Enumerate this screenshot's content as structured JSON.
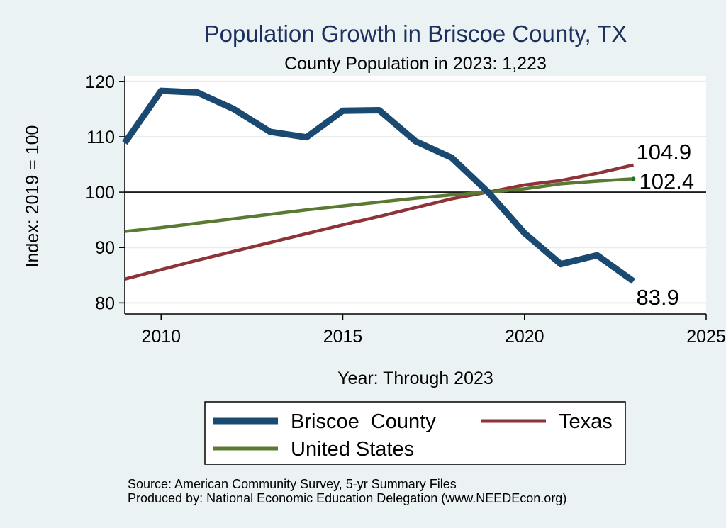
{
  "chart_data": {
    "type": "line",
    "title": "Population Growth in Briscoe County, TX",
    "subtitle": "County Population in 2023: 1,223",
    "xlabel": "Year: Through 2023",
    "ylabel": "Index: 2019 = 100",
    "xlim": [
      2009,
      2025
    ],
    "ylim": [
      78,
      121
    ],
    "xticks": [
      2010,
      2015,
      2020,
      2025
    ],
    "yticks": [
      80,
      90,
      100,
      110,
      120
    ],
    "reference_line": 100,
    "x": [
      2009,
      2010,
      2011,
      2012,
      2013,
      2014,
      2015,
      2016,
      2017,
      2018,
      2019,
      2020,
      2021,
      2022,
      2023
    ],
    "series": [
      {
        "name": "Briscoe  County",
        "color": "#1a4a72",
        "values": [
          108.9,
          118.3,
          118.0,
          115.0,
          110.9,
          109.9,
          114.7,
          114.8,
          109.2,
          106.2,
          100.0,
          92.6,
          87.0,
          88.6,
          83.9
        ],
        "end_label": "83.9"
      },
      {
        "name": "Texas",
        "color": "#8e3338",
        "values": [
          84.3,
          86.0,
          87.7,
          89.3,
          90.9,
          92.5,
          94.1,
          95.6,
          97.2,
          98.8,
          100.0,
          101.3,
          102.1,
          103.4,
          104.9
        ],
        "end_label": "104.9"
      },
      {
        "name": "United States",
        "color": "#5a7a33",
        "values": [
          92.9,
          93.6,
          94.4,
          95.2,
          96.0,
          96.8,
          97.5,
          98.2,
          98.9,
          99.5,
          100.0,
          100.6,
          101.5,
          102.0,
          102.4
        ],
        "end_label": "102.4"
      }
    ],
    "legend_position": "bottom"
  },
  "notes": {
    "source": "Source: American Community Survey, 5-yr Summary Files",
    "produced_by": "Produced by: National Economic Education Delegation (www.NEEDEcon.org)"
  }
}
